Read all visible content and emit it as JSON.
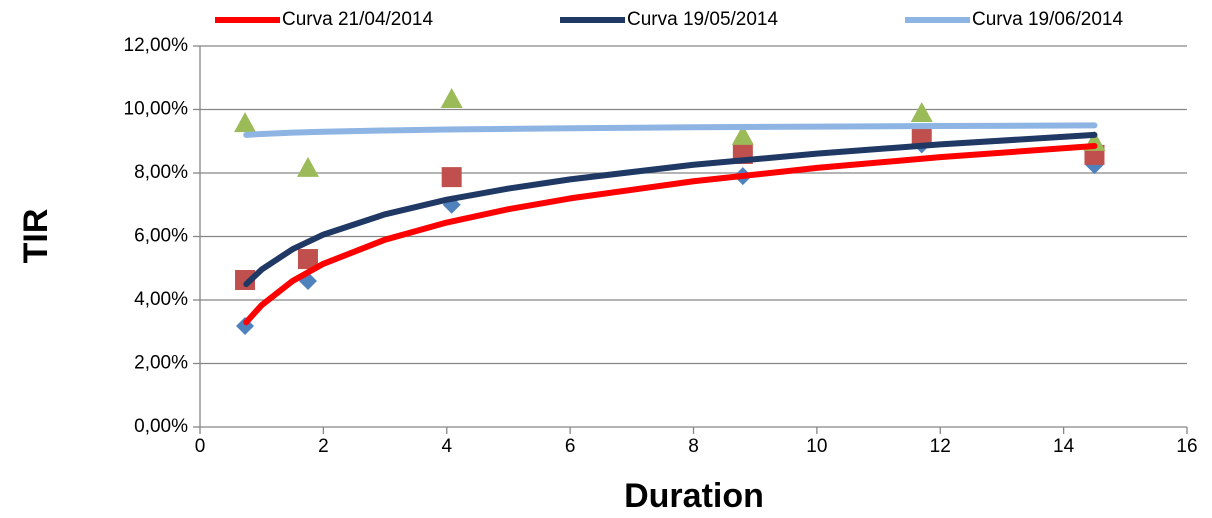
{
  "chart_data": {
    "type": "scatter",
    "x_label": "Duration",
    "y_label": "TIR",
    "xlim": [
      0,
      16
    ],
    "xticks": [
      0,
      2,
      4,
      6,
      8,
      10,
      12,
      14,
      16
    ],
    "ylim": [
      0,
      12
    ],
    "yticks": [
      {
        "value": 0,
        "label": "0,00%"
      },
      {
        "value": 2,
        "label": "2,00%"
      },
      {
        "value": 4,
        "label": "4,00%"
      },
      {
        "value": 6,
        "label": "6,00%"
      },
      {
        "value": 8,
        "label": "8,00%"
      },
      {
        "value": 10,
        "label": "10,00%"
      },
      {
        "value": 12,
        "label": "12,00%"
      }
    ],
    "grid": true,
    "legend": "top",
    "series": [
      {
        "name": "Curva 21/04/2014",
        "color": "#ff0000",
        "marker": "line",
        "x": [
          0.75,
          1,
          1.5,
          2,
          3,
          4,
          5,
          6,
          8,
          10,
          12,
          14.5
        ],
        "values": [
          3.3,
          3.84,
          4.6,
          5.14,
          5.9,
          6.44,
          6.86,
          7.2,
          7.74,
          8.16,
          8.5,
          8.85
        ]
      },
      {
        "name": "Curva 19/05/2014",
        "color": "#1f3864",
        "marker": "line",
        "x": [
          0.75,
          1,
          1.5,
          2,
          3,
          4,
          5,
          6,
          8,
          10,
          12,
          14.5
        ],
        "values": [
          4.5,
          4.96,
          5.6,
          6.06,
          6.7,
          7.16,
          7.51,
          7.8,
          8.26,
          8.61,
          8.9,
          9.2
        ]
      },
      {
        "name": "Curva 19/06/2014",
        "color": "#8eb4e3",
        "marker": "line",
        "x": [
          0.75,
          1,
          1.5,
          2,
          3,
          4,
          5,
          6,
          8,
          10,
          12,
          14.5
        ],
        "values": [
          9.2,
          9.23,
          9.27,
          9.3,
          9.34,
          9.37,
          9.39,
          9.41,
          9.44,
          9.46,
          9.48,
          9.5
        ]
      },
      {
        "color": "#4f81bd",
        "marker": "diamond",
        "x": [
          0.73,
          1.75,
          4.08,
          8.8,
          11.7,
          14.5
        ],
        "values": [
          3.18,
          4.6,
          7.0,
          7.9,
          8.9,
          8.25
        ]
      },
      {
        "color": "#c0504d",
        "marker": "square",
        "x": [
          0.73,
          1.75,
          4.08,
          8.8,
          11.7,
          14.5
        ],
        "values": [
          4.63,
          5.29,
          7.87,
          8.6,
          9.2,
          8.57
        ]
      },
      {
        "color": "#9bbb59",
        "marker": "triangle",
        "x": [
          0.73,
          1.75,
          4.08,
          8.8,
          11.7,
          14.5
        ],
        "values": [
          9.57,
          8.16,
          10.33,
          9.17,
          9.89,
          8.98
        ]
      }
    ]
  }
}
